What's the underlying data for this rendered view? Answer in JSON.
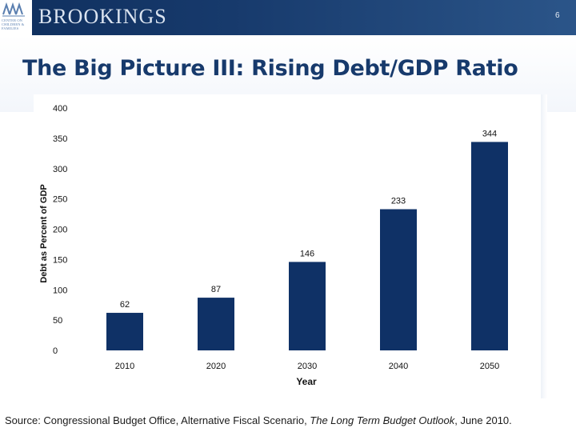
{
  "header": {
    "brand": "BROOKINGS",
    "logo_text": [
      "CENTER ON",
      "CHILDREN &",
      "FAMILIES"
    ],
    "slide_number": "6"
  },
  "title": "The Big Picture III: Rising Debt/GDP Ratio",
  "chart_data": {
    "type": "bar",
    "title": "",
    "xlabel": "Year",
    "ylabel": "Debt as Percent of GDP",
    "categories": [
      "2010",
      "2020",
      "2030",
      "2040",
      "2050"
    ],
    "values": [
      62,
      87,
      146,
      233,
      344
    ],
    "value_labels": [
      "62",
      "87",
      "146",
      "233",
      "344"
    ],
    "yticks": [
      0,
      50,
      100,
      150,
      200,
      250,
      300,
      350,
      400
    ],
    "ylim": [
      0,
      400
    ],
    "bar_color": "#0f3166",
    "grid": false,
    "legend": "none"
  },
  "source": {
    "prefix": "Source: Congressional Budget Office, Alternative Fiscal Scenario, ",
    "italic": "The Long Term Budget Outlook",
    "suffix": ", June 2010."
  },
  "colors": {
    "header_dark": "#0f2f5e",
    "title": "#173a6c",
    "bar": "#0f3166"
  }
}
